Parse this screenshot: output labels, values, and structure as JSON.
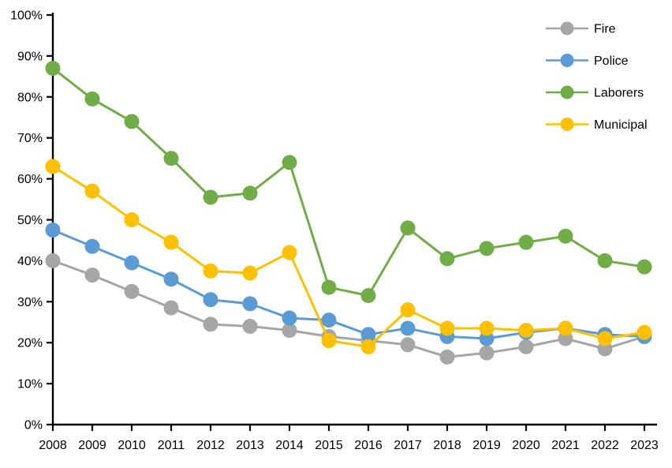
{
  "chart_data": {
    "type": "line",
    "title": "",
    "xlabel": "",
    "ylabel": "",
    "categories": [
      "2008",
      "2009",
      "2010",
      "2011",
      "2012",
      "2013",
      "2014",
      "2015",
      "2016",
      "2017",
      "2018",
      "2019",
      "2020",
      "2021",
      "2022",
      "2023"
    ],
    "series": [
      {
        "name": "Fire",
        "color": "#A6A6A6",
        "values": [
          40,
          36.5,
          32.5,
          28.5,
          24.5,
          24,
          23,
          21.5,
          20.5,
          19.5,
          16.5,
          17.5,
          19,
          21,
          18.5,
          21.5
        ]
      },
      {
        "name": "Police",
        "color": "#5B9BD5",
        "values": [
          47.5,
          43.5,
          39.5,
          35.5,
          30.5,
          29.5,
          26,
          25.5,
          22,
          23.5,
          21.5,
          21,
          22.5,
          23.5,
          22,
          21.5
        ]
      },
      {
        "name": "Laborers",
        "color": "#70AD47",
        "values": [
          87,
          79.5,
          74,
          65,
          55.5,
          56.5,
          64,
          33.5,
          31.5,
          48,
          40.5,
          43,
          44.5,
          46,
          40,
          38.5
        ]
      },
      {
        "name": "Municipal",
        "color": "#FFC000",
        "values": [
          63,
          57,
          50,
          44.5,
          37.5,
          37,
          42,
          20.5,
          19,
          28,
          23.5,
          23.5,
          23,
          23.5,
          21,
          22.5
        ]
      }
    ],
    "ylim": [
      0,
      100
    ],
    "y_tick_step": 10,
    "y_tick_labels": [
      "0%",
      "10%",
      "20%",
      "30%",
      "40%",
      "50%",
      "60%",
      "70%",
      "80%",
      "90%",
      "100%"
    ],
    "legend": {
      "position": "top-right",
      "entries": [
        "Fire",
        "Police",
        "Laborers",
        "Municipal"
      ]
    },
    "grid": false,
    "axis_color": "#000000",
    "background": "#FFFFFF"
  }
}
